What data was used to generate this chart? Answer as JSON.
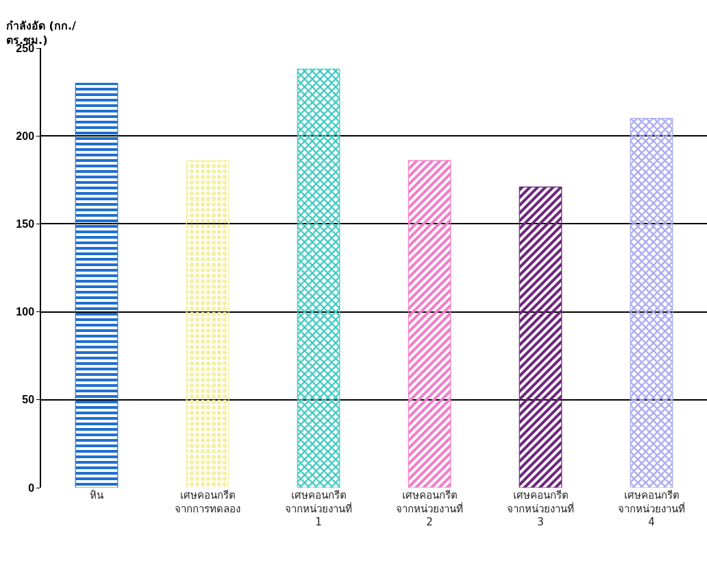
{
  "chart_data": {
    "type": "bar",
    "ylabel": "กำลังอัด (กก./\nตร.ซม.)",
    "categories": [
      "หิน",
      "เศษคอนกรีต\nจากการทดลอง",
      "เศษคอนกรีต\nจากหน่วยงานที่\n1",
      "เศษคอนกรีต\nจากหน่วยงานที่\n2",
      "เศษคอนกรีต\nจากหน่วยงานที่\n3",
      "เศษคอนกรีต\nจากหน่วยงานที่\n4"
    ],
    "values": [
      230,
      186,
      238,
      186,
      171,
      210
    ],
    "colors": [
      "#1f6fd1",
      "#f3f0a8",
      "#3cc9c0",
      "#f07ac8",
      "#6a1f7a",
      "#a8a8f0"
    ],
    "ylim": [
      0,
      250
    ],
    "yticks": [
      0,
      50,
      100,
      150,
      200,
      250
    ],
    "grid": "y"
  }
}
